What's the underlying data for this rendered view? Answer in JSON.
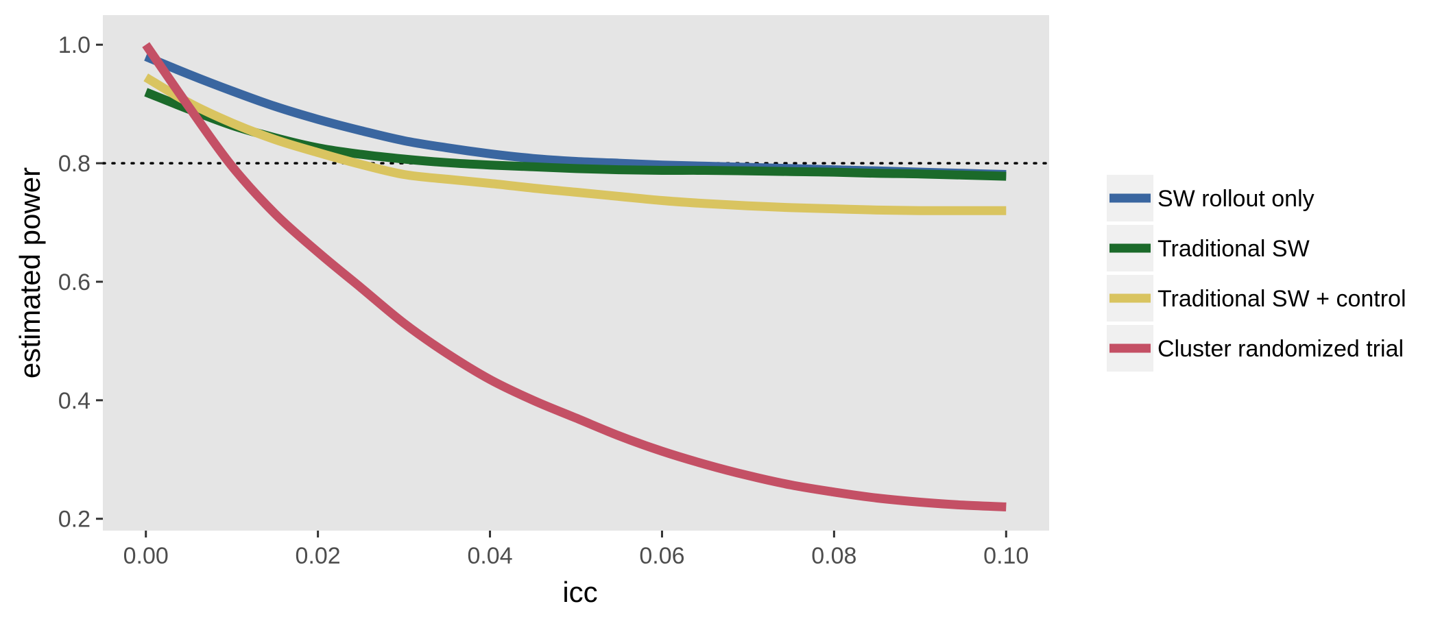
{
  "chart_data": {
    "type": "line",
    "xlabel": "icc",
    "ylabel": "estimated power",
    "xlim": [
      -0.005,
      0.105
    ],
    "ylim": [
      0.18,
      1.05
    ],
    "x_ticks": [
      0.0,
      0.02,
      0.04,
      0.06,
      0.08,
      0.1
    ],
    "x_tick_labels": [
      "0.00",
      "0.02",
      "0.04",
      "0.06",
      "0.08",
      "0.10"
    ],
    "y_ticks": [
      0.2,
      0.4,
      0.6,
      0.8,
      1.0
    ],
    "y_tick_labels": [
      "0.2",
      "0.4",
      "0.6",
      "0.8",
      "1.0"
    ],
    "grid": false,
    "background": "#e5e5e5",
    "reference_line": {
      "y": 0.8,
      "style": "dotted",
      "color": "#000000"
    },
    "legend_position": "right",
    "x": [
      0.0,
      0.005,
      0.01,
      0.015,
      0.02,
      0.025,
      0.03,
      0.035,
      0.04,
      0.045,
      0.05,
      0.055,
      0.06,
      0.065,
      0.07,
      0.075,
      0.08,
      0.085,
      0.09,
      0.095,
      0.1
    ],
    "series": [
      {
        "name": "SW rollout only",
        "color": "#3a66a0",
        "values": [
          0.98,
          0.95,
          0.922,
          0.896,
          0.874,
          0.855,
          0.838,
          0.826,
          0.816,
          0.808,
          0.803,
          0.8,
          0.797,
          0.795,
          0.793,
          0.791,
          0.789,
          0.787,
          0.785,
          0.783,
          0.781
        ]
      },
      {
        "name": "Traditional SW",
        "color": "#1b6a2a",
        "values": [
          0.92,
          0.891,
          0.864,
          0.843,
          0.826,
          0.815,
          0.807,
          0.801,
          0.797,
          0.794,
          0.791,
          0.789,
          0.788,
          0.788,
          0.787,
          0.786,
          0.785,
          0.783,
          0.782,
          0.78,
          0.778
        ]
      },
      {
        "name": "Traditional SW + control",
        "color": "#d9c460",
        "values": [
          0.945,
          0.902,
          0.868,
          0.84,
          0.818,
          0.798,
          0.781,
          0.773,
          0.766,
          0.758,
          0.751,
          0.744,
          0.737,
          0.732,
          0.728,
          0.725,
          0.723,
          0.721,
          0.72,
          0.72,
          0.72
        ]
      },
      {
        "name": "Cluster randomized trial",
        "color": "#c45065",
        "values": [
          1.0,
          0.895,
          0.795,
          0.715,
          0.65,
          0.59,
          0.53,
          0.479,
          0.435,
          0.4,
          0.37,
          0.34,
          0.314,
          0.292,
          0.273,
          0.257,
          0.245,
          0.235,
          0.228,
          0.223,
          0.22
        ]
      }
    ]
  }
}
